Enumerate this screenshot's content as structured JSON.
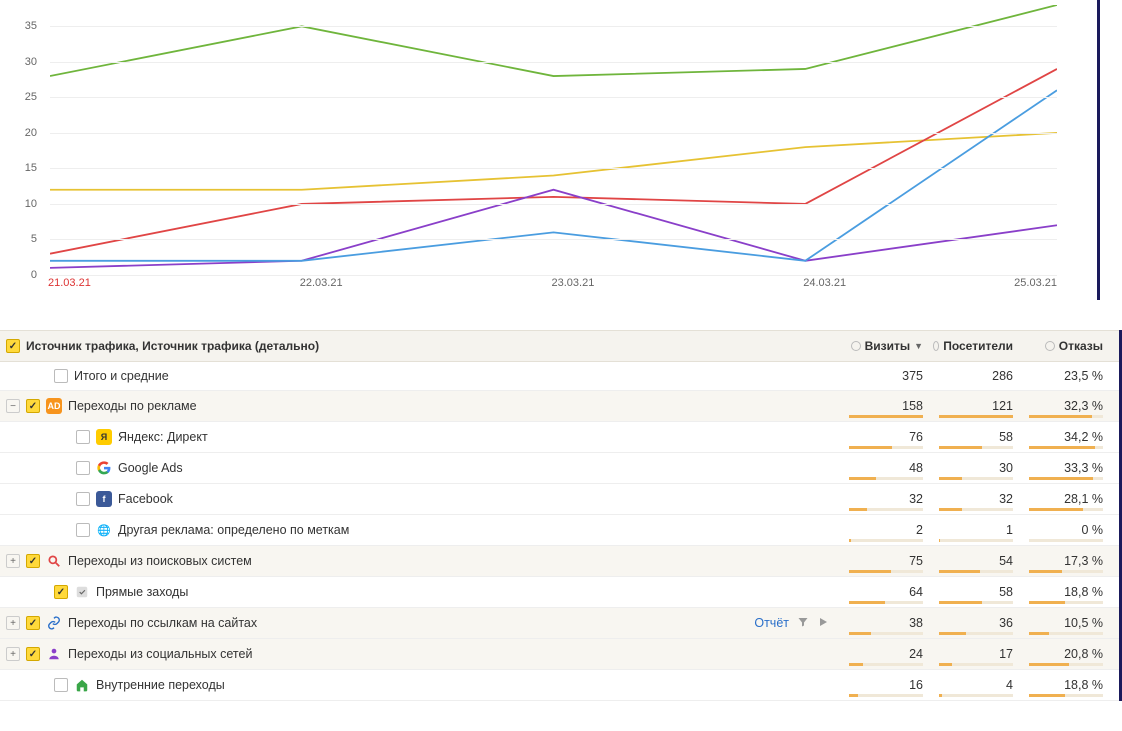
{
  "chart": {
    "type": "line",
    "x_labels": [
      "21.03.21",
      "22.03.21",
      "23.03.21",
      "24.03.21",
      "25.03.21"
    ],
    "y_ticks": [
      0,
      5,
      10,
      15,
      20,
      25,
      30,
      35
    ],
    "ylim": [
      0,
      38
    ],
    "grid_color": "#eeeeee",
    "tick_fontsize": 11,
    "first_x_color": "#d33333",
    "series": [
      {
        "name": "green",
        "color": "#6fb53c",
        "values": [
          28,
          35,
          28,
          29,
          38
        ]
      },
      {
        "name": "yellow",
        "color": "#e6c233",
        "values": [
          12,
          12,
          14,
          18,
          20
        ]
      },
      {
        "name": "red",
        "color": "#e04545",
        "values": [
          3,
          10,
          11,
          10,
          29
        ]
      },
      {
        "name": "purple",
        "color": "#8a3fc9",
        "values": [
          1,
          2,
          12,
          2,
          7
        ]
      },
      {
        "name": "blue",
        "color": "#4a9de0",
        "values": [
          2,
          2,
          6,
          2,
          26
        ]
      }
    ],
    "line_width": 1.8
  },
  "table": {
    "header": {
      "dimension_label": "Источник трафика, Источник трафика (детально)",
      "visits_label": "Визиты",
      "visitors_label": "Посетители",
      "bounce_label": "Отказы",
      "sort_column": "visits",
      "sort_dir_symbol": "▼"
    },
    "otchet_label": "Отчёт",
    "rows": [
      {
        "id": "total",
        "level": 1,
        "expander": "",
        "checked": false,
        "icon": null,
        "label": "Итого и средние",
        "visits": "375",
        "visitors": "286",
        "bounce": "23,5 %",
        "bars": false,
        "alt": false
      },
      {
        "id": "ads",
        "level": 0,
        "expander": "-",
        "checked": true,
        "icon": {
          "bg": "#f7941d",
          "fg": "#fff",
          "txt": "AD",
          "type": "badge"
        },
        "label": "Переходы по рекламе",
        "visits": "158",
        "visitors": "121",
        "bounce": "32,3 %",
        "bars": true,
        "bar_pct": [
          100,
          100,
          70
        ],
        "alt": true
      },
      {
        "id": "ydirect",
        "level": 2,
        "expander": "",
        "checked": false,
        "icon": {
          "bg": "#ffcc00",
          "fg": "#333",
          "txt": "Я",
          "type": "badge"
        },
        "label": "Яндекс: Директ",
        "visits": "76",
        "visitors": "58",
        "bounce": "34,2 %",
        "bars": true,
        "bar_pct": [
          48,
          48,
          73
        ],
        "alt": false
      },
      {
        "id": "gads",
        "level": 2,
        "expander": "",
        "checked": false,
        "icon": {
          "type": "google"
        },
        "label": "Google Ads",
        "visits": "48",
        "visitors": "30",
        "bounce": "33,3 %",
        "bars": true,
        "bar_pct": [
          30,
          25,
          71
        ],
        "alt": false
      },
      {
        "id": "fb",
        "level": 2,
        "expander": "",
        "checked": false,
        "icon": {
          "bg": "#3b5998",
          "fg": "#fff",
          "txt": "f",
          "type": "badge"
        },
        "label": "Facebook",
        "visits": "32",
        "visitors": "32",
        "bounce": "28,1 %",
        "bars": true,
        "bar_pct": [
          20,
          26,
          60
        ],
        "alt": false
      },
      {
        "id": "other-ad",
        "level": 2,
        "expander": "",
        "checked": false,
        "icon": {
          "type": "globe"
        },
        "label": "Другая реклама: определено по меткам",
        "visits": "2",
        "visitors": "1",
        "bounce": "0 %",
        "bars": true,
        "bar_pct": [
          2,
          1,
          0
        ],
        "alt": false
      },
      {
        "id": "search",
        "level": 0,
        "expander": "+",
        "checked": true,
        "icon": {
          "type": "search",
          "color": "#e04545"
        },
        "label": "Переходы из поисковых систем",
        "visits": "75",
        "visitors": "54",
        "bounce": "17,3 %",
        "bars": true,
        "bar_pct": [
          47,
          45,
          37
        ],
        "alt": true
      },
      {
        "id": "direct",
        "level": 1,
        "expander": "",
        "checked": true,
        "icon": {
          "type": "direct",
          "color": "#888"
        },
        "label": "Прямые заходы",
        "visits": "64",
        "visitors": "58",
        "bounce": "18,8 %",
        "bars": true,
        "bar_pct": [
          40,
          48,
          40
        ],
        "alt": false
      },
      {
        "id": "links",
        "level": 0,
        "expander": "+",
        "checked": true,
        "icon": {
          "type": "link",
          "color": "#2a6fc9"
        },
        "label": "Переходы по ссылкам на сайтах",
        "visits": "38",
        "visitors": "36",
        "bounce": "10,5 %",
        "bars": true,
        "bar_pct": [
          24,
          30,
          22
        ],
        "alt": true,
        "has_actions": true
      },
      {
        "id": "social",
        "level": 0,
        "expander": "+",
        "checked": true,
        "icon": {
          "type": "social",
          "color": "#8a3fc9"
        },
        "label": "Переходы из социальных сетей",
        "visits": "24",
        "visitors": "17",
        "bounce": "20,8 %",
        "bars": true,
        "bar_pct": [
          15,
          14,
          44
        ],
        "alt": true
      },
      {
        "id": "internal",
        "level": 1,
        "expander": "",
        "checked": false,
        "icon": {
          "type": "home",
          "color": "#3aa648"
        },
        "label": "Внутренние переходы",
        "visits": "16",
        "visitors": "4",
        "bounce": "18,8 %",
        "bars": true,
        "bar_pct": [
          10,
          3,
          40
        ],
        "alt": false
      }
    ],
    "bar_bg_color": "#f0e8d8",
    "bar_fill_color": "#f0b050"
  }
}
